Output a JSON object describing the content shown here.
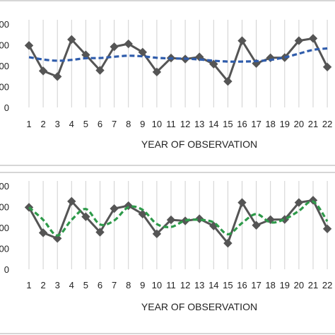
{
  "chart_data": [
    {
      "type": "line",
      "xlabel": "YEAR OF OBSERVATION",
      "categories": [
        "1",
        "2",
        "3",
        "4",
        "5",
        "6",
        "7",
        "8",
        "9",
        "10",
        "11",
        "12",
        "13",
        "14",
        "15",
        "16",
        "17",
        "18",
        "19",
        "20",
        "21",
        "22"
      ],
      "y_tick_labels": [
        "0",
        "00",
        "00",
        "00",
        "00"
      ],
      "grid": "vertical",
      "series": [
        {
          "style": "solid-diamond",
          "color": "#555555",
          "values": [
            2.97,
            1.75,
            1.48,
            3.26,
            2.52,
            1.78,
            2.91,
            3.05,
            2.65,
            1.7,
            2.37,
            2.32,
            2.42,
            2.08,
            1.25,
            3.2,
            2.11,
            2.38,
            2.39,
            3.2,
            3.31,
            1.94
          ]
        },
        {
          "style": "dashed-trend",
          "color": "#2f5cab",
          "values": [
            2.41,
            2.3,
            2.24,
            2.28,
            2.36,
            2.37,
            2.43,
            2.48,
            2.45,
            2.38,
            2.35,
            2.34,
            2.3,
            2.24,
            2.2,
            2.2,
            2.22,
            2.28,
            2.4,
            2.58,
            2.76,
            2.83
          ]
        }
      ]
    },
    {
      "type": "line",
      "xlabel": "YEAR OF OBSERVATION",
      "categories": [
        "1",
        "2",
        "3",
        "4",
        "5",
        "6",
        "7",
        "8",
        "9",
        "10",
        "11",
        "12",
        "13",
        "14",
        "15",
        "16",
        "17",
        "18",
        "19",
        "20",
        "21",
        "22"
      ],
      "y_tick_labels": [
        "0",
        "00",
        "00",
        "00",
        "00"
      ],
      "grid": "vertical",
      "series": [
        {
          "style": "solid-diamond",
          "color": "#555555",
          "values": [
            2.97,
            1.75,
            1.48,
            3.26,
            2.52,
            1.78,
            2.91,
            3.05,
            2.65,
            1.7,
            2.37,
            2.32,
            2.42,
            2.08,
            1.25,
            3.2,
            2.11,
            2.38,
            2.39,
            3.2,
            3.31,
            1.94
          ]
        },
        {
          "style": "dashed-moving-average",
          "color": "#2e9a4a",
          "values": [
            2.97,
            2.37,
            1.62,
            2.37,
            2.89,
            2.15,
            2.34,
            2.98,
            2.85,
            2.17,
            2.03,
            2.34,
            2.37,
            2.25,
            1.68,
            2.22,
            2.65,
            2.25,
            2.4,
            2.8,
            3.25,
            2.3
          ]
        }
      ]
    }
  ]
}
